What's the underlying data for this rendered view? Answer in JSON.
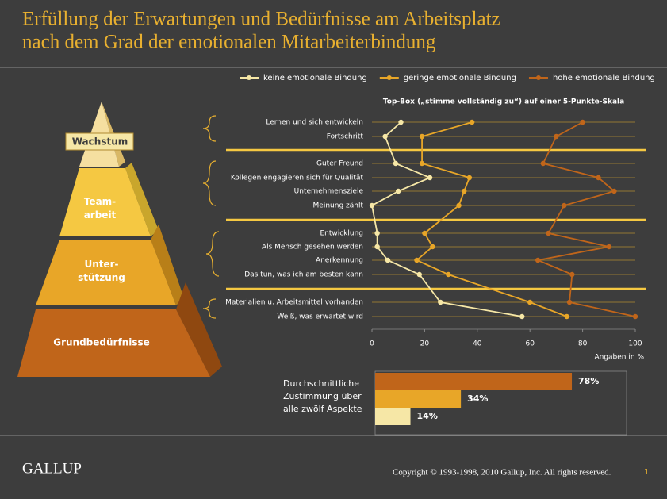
{
  "title": [
    "Erfüllung der Erwartungen und Bedürfnisse am Arbeitsplatz",
    "nach dem Grad der emotionalen Mitarbeiterbindung"
  ],
  "pyramid": [
    [
      "Wachstum"
    ],
    [
      "Team-",
      "arbeit"
    ],
    [
      "Unter-",
      "stützung"
    ],
    [
      "Grundbedürfnisse"
    ]
  ],
  "chart_data": [
    {
      "type": "line",
      "orientation": "horizontal",
      "subtitle": "Top-Box („stimme vollständig zu“) auf einer 5-Punkte-Skala",
      "xlabel": "Angaben in %",
      "categories": [
        "Lernen und sich entwickeln",
        "Fortschritt",
        "Guter Freund",
        "Kollegen engagieren sich für Qualität",
        "Unternehmensziele",
        "Meinung zählt",
        "Entwicklung",
        "Als Mensch gesehen werden",
        "Anerkennung",
        "Das tun, was ich am besten kann",
        "Materialien u. Arbeitsmittel vorhanden",
        "Weiß, was erwartet wird"
      ],
      "series": [
        {
          "name": "keine emotionale Bindung",
          "color": "#f6e7a6",
          "values": [
            11,
            5,
            9,
            22,
            10,
            0,
            2,
            2,
            6,
            18,
            26,
            57
          ]
        },
        {
          "name": "geringe emotionale Bindung",
          "color": "#e8a628",
          "values": [
            38,
            19,
            19,
            37,
            35,
            33,
            20,
            23,
            17,
            29,
            60,
            74
          ]
        },
        {
          "name": "hohe emotionale Bindung",
          "color": "#c0651a",
          "values": [
            80,
            70,
            65,
            86,
            92,
            73,
            67,
            90,
            63,
            76,
            75,
            100
          ]
        }
      ],
      "xlim": [
        0,
        100
      ],
      "xticks": [
        0,
        20,
        40,
        60,
        80,
        100
      ],
      "legend": "top"
    },
    {
      "type": "bar",
      "orientation": "horizontal",
      "label": [
        "Durchschnittliche",
        "Zustimmung über",
        "alle zwölf Aspekte"
      ],
      "values": [
        78,
        34,
        14
      ],
      "value_labels": [
        "78%",
        "34%",
        "14%"
      ],
      "colors": [
        "#c0651a",
        "#e8a628",
        "#f6e7a6"
      ],
      "xlim": [
        0,
        100
      ]
    }
  ],
  "footer": {
    "logo": "GALLUP",
    "copyright": "Copyright © 1993-1998, 2010 Gallup, Inc. All rights reserved.",
    "page": 1
  }
}
